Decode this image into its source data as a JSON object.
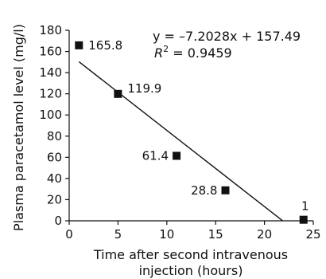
{
  "chart_data": {
    "type": "scatter",
    "xlabel_line1": "Time after second intravenous",
    "xlabel_line2": "injection (hours)",
    "ylabel": "Plasma paracetamol level (mg/l)",
    "xlim": [
      0,
      25
    ],
    "ylim": [
      0,
      180
    ],
    "xticks": [
      0,
      5,
      10,
      15,
      20,
      25
    ],
    "yticks": [
      0,
      20,
      40,
      60,
      80,
      100,
      120,
      140,
      160,
      180
    ],
    "grid": false,
    "marker": "square",
    "marker_color": "#111111",
    "points": [
      {
        "x": 1,
        "y": 165.8,
        "label": "165.8"
      },
      {
        "x": 5,
        "y": 119.9,
        "label": "119.9"
      },
      {
        "x": 11,
        "y": 61.4,
        "label": "61.4"
      },
      {
        "x": 16,
        "y": 28.8,
        "label": "28.8"
      },
      {
        "x": 24,
        "y": 1,
        "label": "1"
      }
    ],
    "trendline": {
      "slope": -7.2028,
      "intercept": 157.49,
      "x_start": 1,
      "x_end": 21.86,
      "equation": "y = –7.2028x + 157.49",
      "r2_prefix": "R",
      "r2_sup": "2",
      "r2_value": " = 0.9459"
    }
  }
}
